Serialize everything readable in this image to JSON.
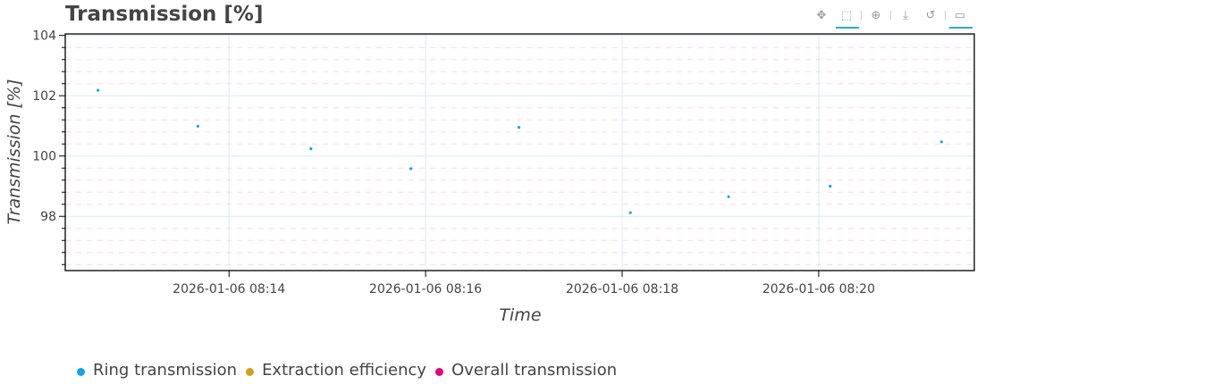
{
  "chart_data": {
    "type": "scatter",
    "title": "Transmission [%]",
    "xlabel": "Time",
    "ylabel": "Transmission [%]",
    "ylim": [
      96.2,
      104.05
    ],
    "xlim": [
      "2026-01-06 08:12:20",
      "2026-01-06 08:21:35"
    ],
    "yticks": [
      98,
      100,
      102,
      104
    ],
    "xticks": [
      "2026-01-06 08:14",
      "2026-01-06 08:16",
      "2026-01-06 08:18",
      "2026-01-06 08:20"
    ],
    "grid": true,
    "legend_position": "bottom",
    "legend": [
      {
        "name": "Ring transmission",
        "color": "#0ea5e9"
      },
      {
        "name": "Extraction efficiency",
        "color": "#d4a017"
      },
      {
        "name": "Overall transmission",
        "color": "#e6007e"
      }
    ],
    "series": [
      {
        "name": "Ring transmission",
        "color": "#0ea5e9",
        "points": [
          {
            "x": "2026-01-06 08:12:40",
            "y": 102.18
          },
          {
            "x": "2026-01-06 08:13:41",
            "y": 100.99
          },
          {
            "x": "2026-01-06 08:14:50",
            "y": 100.24
          },
          {
            "x": "2026-01-06 08:15:51",
            "y": 99.58
          },
          {
            "x": "2026-01-06 08:16:57",
            "y": 100.95
          },
          {
            "x": "2026-01-06 08:18:05",
            "y": 98.12
          },
          {
            "x": "2026-01-06 08:19:05",
            "y": 98.65
          },
          {
            "x": "2026-01-06 08:20:07",
            "y": 99.0
          },
          {
            "x": "2026-01-06 08:21:15",
            "y": 100.47
          }
        ]
      }
    ]
  },
  "toolbar": [
    "pan-icon",
    "box-zoom-icon",
    "wheel-zoom-icon",
    "save-icon",
    "reset-icon",
    "hover-icon"
  ]
}
